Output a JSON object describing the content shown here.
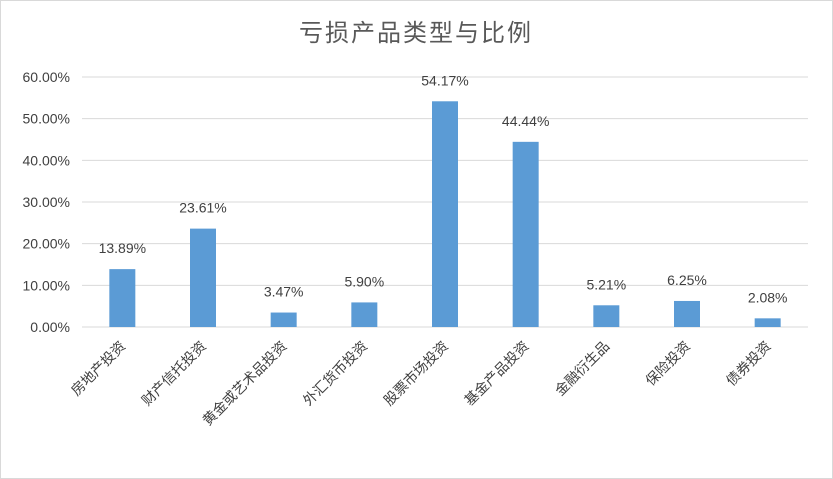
{
  "chart_data": {
    "type": "bar",
    "title": "亏损产品类型与比例",
    "categories": [
      "房地产投资",
      "财产信托投资",
      "黄金或艺术品投资",
      "外汇货币投资",
      "股票市场投资",
      "基金产品投资",
      "金融衍生品",
      "保险投资",
      "债券投资"
    ],
    "values": [
      13.89,
      23.61,
      3.47,
      5.9,
      54.17,
      44.44,
      5.21,
      6.25,
      2.08
    ],
    "data_labels": [
      "13.89%",
      "23.61%",
      "3.47%",
      "5.90%",
      "54.17%",
      "44.44%",
      "5.21%",
      "6.25%",
      "2.08%"
    ],
    "y_ticks": [
      "0.00%",
      "10.00%",
      "20.00%",
      "30.00%",
      "40.00%",
      "50.00%",
      "60.00%"
    ],
    "ylim": [
      0,
      60
    ],
    "grid": true,
    "legend": "none",
    "bar_color": "#5b9bd5"
  }
}
